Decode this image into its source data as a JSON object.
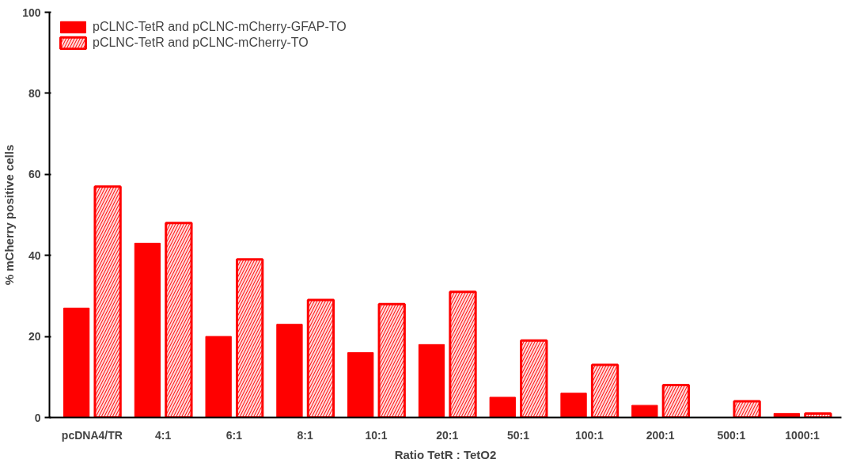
{
  "chart_data": {
    "type": "bar",
    "xlabel": "Ratio TetR : TetO2",
    "ylabel": "% mCherry positive cells",
    "categories": [
      "pcDNA4/TR",
      "4:1",
      "6:1",
      "8:1",
      "10:1",
      "20:1",
      "50:1",
      "100:1",
      "200:1",
      "500:1",
      "1000:1"
    ],
    "series": [
      {
        "name": "pCLNC-TetR and pCLNC-mCherry-GFAP-TO",
        "color": "#ff0000",
        "values": [
          27,
          43,
          20,
          23,
          16,
          18,
          5,
          6,
          3,
          null,
          1
        ]
      },
      {
        "name": "pCLNC-TetR and pCLNC-mCherry-TO",
        "color": "#ff0000",
        "values": [
          57,
          48,
          39,
          29,
          28,
          31,
          19,
          13,
          8,
          4,
          1
        ]
      }
    ],
    "ylim": [
      0,
      100
    ],
    "yticks": [
      0,
      20,
      40,
      60,
      80,
      100
    ],
    "grid": false,
    "legend": "top left"
  }
}
